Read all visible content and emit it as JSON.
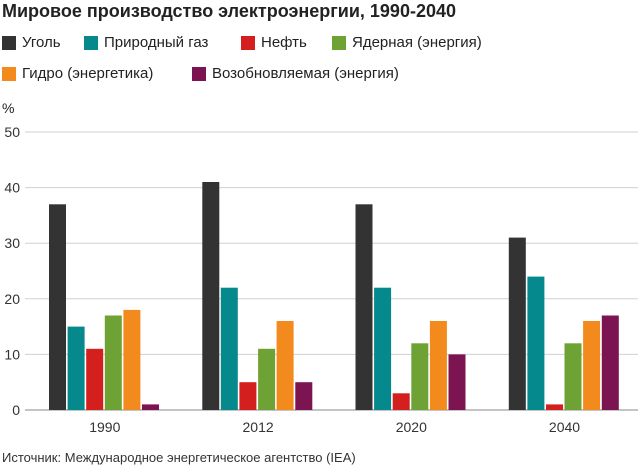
{
  "chart_data": {
    "type": "bar",
    "title": "Мировое производство электроэнергии, 1990-2040",
    "ylabel": "%",
    "ylim": [
      0,
      50
    ],
    "yticks": [
      0,
      10,
      20,
      30,
      40,
      50
    ],
    "categories": [
      "1990",
      "2012",
      "2020",
      "2040"
    ],
    "legend_position": "top",
    "grid": true,
    "series": [
      {
        "name": "Уголь",
        "color": "#333333",
        "values": [
          37,
          41,
          37,
          31
        ]
      },
      {
        "name": "Природный газ",
        "color": "#05898c",
        "values": [
          15,
          22,
          22,
          24
        ]
      },
      {
        "name": "Нефть",
        "color": "#d41f1f",
        "values": [
          11,
          5,
          3,
          1
        ]
      },
      {
        "name": "Ядерная (энергия)",
        "color": "#6fa235",
        "values": [
          17,
          11,
          12,
          12
        ]
      },
      {
        "name": "Гидро (энергетика)",
        "color": "#f28a1e",
        "values": [
          18,
          16,
          16,
          16
        ]
      },
      {
        "name": "Возобновляемая (энергия)",
        "color": "#7b1450",
        "values": [
          1,
          5,
          10,
          17
        ]
      }
    ],
    "source": "Источник: Международное энергетическое агентство (IEA)"
  }
}
